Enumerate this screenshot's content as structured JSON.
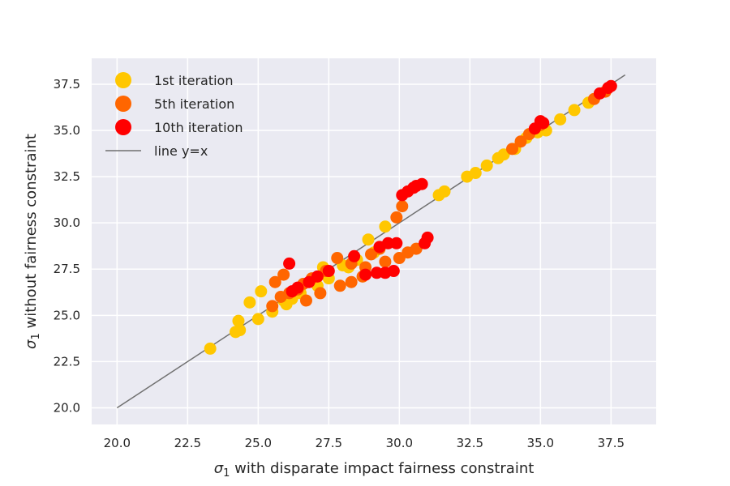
{
  "chart_data": {
    "type": "scatter",
    "title": "",
    "xlabel_symbol": "σ",
    "xlabel_sub": "1",
    "xlabel_text": " with disparate impact fairness constraint",
    "ylabel_symbol": "σ",
    "ylabel_sub": "1",
    "ylabel_text": " without fairness constraint",
    "xlim": [
      19.1,
      39.1
    ],
    "ylim": [
      19.1,
      38.9
    ],
    "xticks": [
      "20.0",
      "22.5",
      "25.0",
      "27.5",
      "30.0",
      "32.5",
      "35.0",
      "37.5"
    ],
    "yticks": [
      "20.0",
      "22.5",
      "25.0",
      "27.5",
      "30.0",
      "32.5",
      "35.0",
      "37.5"
    ],
    "grid": true,
    "legend_position": "top-left",
    "reference_line": {
      "name": "line y=x",
      "x": [
        20.0,
        38.0
      ],
      "y": [
        20.0,
        38.0
      ],
      "color": "#707070"
    },
    "series": [
      {
        "name": "1st iteration",
        "color": "#FFC700",
        "points": [
          [
            23.3,
            23.2
          ],
          [
            24.2,
            24.1
          ],
          [
            24.3,
            24.7
          ],
          [
            24.35,
            24.2
          ],
          [
            24.7,
            25.7
          ],
          [
            25.0,
            24.8
          ],
          [
            25.1,
            26.3
          ],
          [
            25.5,
            25.2
          ],
          [
            25.9,
            25.8
          ],
          [
            26.0,
            25.6
          ],
          [
            26.2,
            25.9
          ],
          [
            26.5,
            26.2
          ],
          [
            27.1,
            26.6
          ],
          [
            27.3,
            27.6
          ],
          [
            27.5,
            27.0
          ],
          [
            28.0,
            27.7
          ],
          [
            28.2,
            27.6
          ],
          [
            28.5,
            28.0
          ],
          [
            28.9,
            29.1
          ],
          [
            29.1,
            28.4
          ],
          [
            29.5,
            29.8
          ],
          [
            31.4,
            31.5
          ],
          [
            31.6,
            31.7
          ],
          [
            32.4,
            32.5
          ],
          [
            32.7,
            32.7
          ],
          [
            33.1,
            33.1
          ],
          [
            33.5,
            33.5
          ],
          [
            33.7,
            33.7
          ],
          [
            34.1,
            34.0
          ],
          [
            34.5,
            34.6
          ],
          [
            34.9,
            34.9
          ],
          [
            35.2,
            35.0
          ],
          [
            35.7,
            35.6
          ],
          [
            36.2,
            36.1
          ],
          [
            36.7,
            36.5
          ]
        ]
      },
      {
        "name": "5th iteration",
        "color": "#FF6600",
        "points": [
          [
            25.5,
            25.5
          ],
          [
            25.6,
            26.8
          ],
          [
            25.8,
            26.0
          ],
          [
            25.9,
            27.2
          ],
          [
            26.1,
            26.2
          ],
          [
            26.4,
            26.4
          ],
          [
            26.6,
            26.7
          ],
          [
            26.7,
            25.8
          ],
          [
            26.9,
            27.0
          ],
          [
            27.2,
            26.2
          ],
          [
            27.4,
            27.4
          ],
          [
            27.8,
            28.1
          ],
          [
            27.9,
            26.6
          ],
          [
            28.3,
            27.8
          ],
          [
            28.3,
            26.8
          ],
          [
            28.7,
            27.1
          ],
          [
            28.8,
            27.6
          ],
          [
            29.0,
            28.3
          ],
          [
            29.3,
            28.6
          ],
          [
            29.5,
            27.9
          ],
          [
            29.9,
            30.3
          ],
          [
            30.0,
            28.1
          ],
          [
            30.1,
            30.9
          ],
          [
            30.3,
            28.4
          ],
          [
            30.6,
            28.6
          ],
          [
            34.0,
            34.0
          ],
          [
            34.3,
            34.4
          ],
          [
            34.6,
            34.8
          ],
          [
            35.0,
            35.3
          ],
          [
            36.9,
            36.7
          ],
          [
            37.3,
            37.1
          ]
        ]
      },
      {
        "name": "10th iteration",
        "color": "#FF0000",
        "points": [
          [
            26.1,
            27.8
          ],
          [
            26.2,
            26.3
          ],
          [
            26.4,
            26.5
          ],
          [
            26.8,
            26.8
          ],
          [
            27.1,
            27.1
          ],
          [
            27.5,
            27.4
          ],
          [
            28.4,
            28.2
          ],
          [
            28.8,
            27.2
          ],
          [
            29.2,
            27.3
          ],
          [
            29.3,
            28.7
          ],
          [
            29.5,
            27.3
          ],
          [
            29.6,
            28.9
          ],
          [
            29.8,
            27.4
          ],
          [
            29.9,
            28.9
          ],
          [
            30.1,
            31.5
          ],
          [
            30.3,
            31.7
          ],
          [
            30.5,
            31.9
          ],
          [
            30.6,
            32.0
          ],
          [
            30.8,
            32.1
          ],
          [
            30.9,
            28.9
          ],
          [
            31.0,
            29.2
          ],
          [
            34.8,
            35.1
          ],
          [
            35.0,
            35.5
          ],
          [
            35.1,
            35.4
          ],
          [
            37.1,
            37.0
          ],
          [
            37.4,
            37.3
          ],
          [
            37.5,
            37.4
          ]
        ]
      }
    ]
  }
}
